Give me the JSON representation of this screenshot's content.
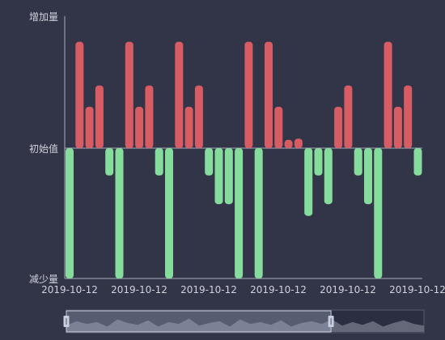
{
  "chart_data": {
    "type": "bar",
    "y_axis_labels": {
      "top": "增加量",
      "middle": "初始值",
      "bottom": "减少量"
    },
    "x_tick_labels": [
      "2019-10-12",
      "2019-10-12",
      "2019-10-12",
      "2019-10-12",
      "2019-10-12",
      "2019-10-12"
    ],
    "ylim": [
      -100,
      100
    ],
    "values": [
      -100,
      90,
      35,
      53,
      -21,
      -100,
      90,
      35,
      53,
      -21,
      -100,
      90,
      35,
      53,
      -21,
      -43,
      -43,
      -100,
      90,
      -100,
      90,
      35,
      7,
      8,
      -52,
      -21,
      -43,
      35,
      53,
      -21,
      -43,
      -100,
      90,
      35,
      53,
      -21
    ],
    "colors": {
      "increase": "#d85c63",
      "decrease": "#86dc9c",
      "background": "#323548",
      "axis": "#a8aab8",
      "text": "#d0d2dc"
    },
    "datazoom": {
      "window_start_fraction": 0.0,
      "window_end_fraction": 0.74,
      "overview_profile": [
        0.35,
        0.6,
        0.45,
        0.55,
        0.3,
        0.7,
        0.5,
        0.4,
        0.65,
        0.3,
        0.55,
        0.45,
        0.75,
        0.35,
        0.5,
        0.6,
        0.3,
        0.7,
        0.45,
        0.55,
        0.4,
        0.65,
        0.3,
        0.5,
        0.6,
        0.45,
        0.7,
        0.35,
        0.55,
        0.4,
        0.6,
        0.3,
        0.5,
        0.65,
        0.45,
        0.35
      ]
    }
  }
}
